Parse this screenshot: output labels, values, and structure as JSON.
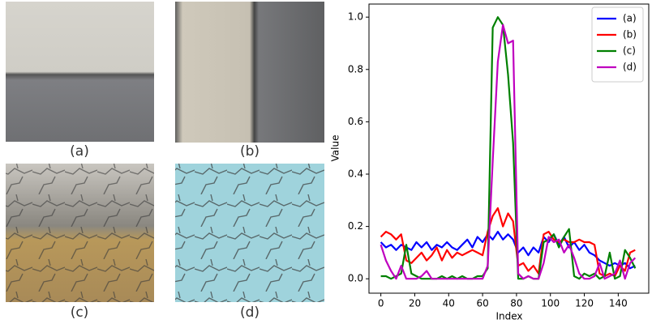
{
  "panels": [
    {
      "label": "(a)"
    },
    {
      "label": "(b)"
    },
    {
      "label": "(c)"
    },
    {
      "label": "(d)"
    }
  ],
  "chart_data": {
    "type": "line",
    "xlabel": "Index",
    "ylabel": "Value",
    "xlim": [
      -7,
      158
    ],
    "ylim": [
      -0.055,
      1.05
    ],
    "xticks": [
      0,
      20,
      40,
      60,
      80,
      100,
      120,
      140
    ],
    "yticks": [
      {
        "value": 0,
        "label": "0.0"
      },
      0.2,
      0.4,
      0.6,
      0.8,
      {
        "value": 1,
        "label": "1.0"
      }
    ],
    "legend": "upper right",
    "grid": false,
    "x": [
      0,
      3,
      6,
      9,
      12,
      15,
      18,
      21,
      24,
      27,
      30,
      33,
      36,
      39,
      42,
      45,
      48,
      51,
      54,
      57,
      60,
      63,
      66,
      69,
      72,
      75,
      78,
      81,
      84,
      87,
      90,
      93,
      96,
      99,
      102,
      105,
      108,
      111,
      114,
      117,
      120,
      123,
      126,
      129,
      132,
      135,
      138,
      141,
      144,
      147,
      150
    ],
    "series": [
      {
        "name": "(a)",
        "color": "#0000ff",
        "values": [
          0.14,
          0.12,
          0.13,
          0.11,
          0.13,
          0.12,
          0.11,
          0.14,
          0.12,
          0.14,
          0.11,
          0.13,
          0.12,
          0.14,
          0.12,
          0.11,
          0.13,
          0.15,
          0.12,
          0.16,
          0.14,
          0.17,
          0.15,
          0.18,
          0.15,
          0.17,
          0.15,
          0.1,
          0.12,
          0.09,
          0.12,
          0.1,
          0.16,
          0.14,
          0.17,
          0.13,
          0.16,
          0.12,
          0.14,
          0.11,
          0.13,
          0.1,
          0.09,
          0.07,
          0.06,
          0.05,
          0.06,
          0.05,
          0.06,
          0.04,
          0.05
        ]
      },
      {
        "name": "(b)",
        "color": "#ff0000",
        "values": [
          0.16,
          0.18,
          0.17,
          0.15,
          0.17,
          0.07,
          0.06,
          0.08,
          0.1,
          0.07,
          0.09,
          0.12,
          0.07,
          0.11,
          0.08,
          0.1,
          0.09,
          0.1,
          0.11,
          0.1,
          0.09,
          0.18,
          0.24,
          0.27,
          0.2,
          0.25,
          0.22,
          0.05,
          0.06,
          0.03,
          0.05,
          0.02,
          0.17,
          0.18,
          0.15,
          0.14,
          0.15,
          0.14,
          0.14,
          0.15,
          0.14,
          0.14,
          0.13,
          0.02,
          0.01,
          0.02,
          0.01,
          0.05,
          0.03,
          0.1,
          0.11
        ]
      },
      {
        "name": "(c)",
        "color": "#008000",
        "values": [
          0.01,
          0.01,
          0,
          0.01,
          0.02,
          0.13,
          0.02,
          0.01,
          0,
          0,
          0,
          0,
          0.01,
          0,
          0.01,
          0,
          0.01,
          0,
          0,
          0.01,
          0.01,
          0.04,
          0.96,
          1.0,
          0.97,
          0.78,
          0.52,
          0,
          0,
          0.01,
          0,
          0,
          0.14,
          0.15,
          0.17,
          0.12,
          0.16,
          0.19,
          0.01,
          0,
          0.02,
          0.01,
          0.02,
          0,
          0.01,
          0.1,
          0,
          0.01,
          0.11,
          0.08,
          0.04
        ]
      },
      {
        "name": "(d)",
        "color": "#bf00bf",
        "values": [
          0.13,
          0.07,
          0.03,
          0,
          0.05,
          0,
          0,
          0,
          0.01,
          0.03,
          0,
          0,
          0,
          0,
          0,
          0,
          0,
          0,
          0,
          0,
          0,
          0.05,
          0.45,
          0.83,
          0.97,
          0.9,
          0.91,
          0.02,
          0,
          0.01,
          0,
          0,
          0.06,
          0.16,
          0.14,
          0.15,
          0.1,
          0.13,
          0.08,
          0.02,
          0,
          0,
          0.01,
          0.06,
          0,
          0.01,
          0.02,
          0.07,
          0,
          0.06,
          0.08
        ]
      }
    ]
  }
}
